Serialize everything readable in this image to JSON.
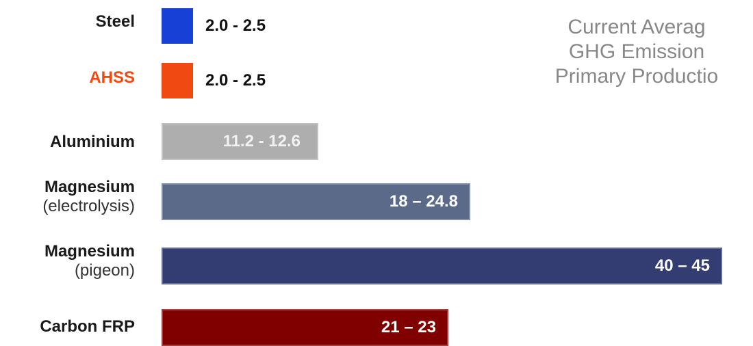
{
  "chart_data": {
    "type": "bar",
    "orientation": "horizontal",
    "categories": [
      {
        "name": "Steel",
        "subname": "",
        "range": [
          2.0,
          2.5
        ],
        "value_label": "2.0 - 2.5",
        "color": "#1640d6",
        "label_color": "#1a1a1a",
        "display": "swatch"
      },
      {
        "name": "AHSS",
        "subname": "",
        "range": [
          2.0,
          2.5
        ],
        "value_label": "2.0 - 2.5",
        "color": "#f04a12",
        "label_color": "#f04a12",
        "display": "swatch"
      },
      {
        "name": "Aluminium",
        "subname": "",
        "range": [
          11.2,
          12.6
        ],
        "value_label": "11.2 - 12.6",
        "color": "#aeaeae",
        "label_color": "#1a1a1a",
        "display": "bar"
      },
      {
        "name": "Magnesium",
        "subname": "(electrolysis)",
        "range": [
          18,
          24.8
        ],
        "value_label": "18 – 24.8",
        "color": "#5c6a8a",
        "label_color": "#1a1a1a",
        "display": "bar"
      },
      {
        "name": "Magnesium",
        "subname": "(pigeon)",
        "range": [
          40,
          45
        ],
        "value_label": "40 – 45",
        "color": "#333d72",
        "label_color": "#1a1a1a",
        "display": "bar"
      },
      {
        "name": "Carbon FRP",
        "subname": "",
        "range": [
          21,
          23
        ],
        "value_label": "21 – 23",
        "color": "#800000",
        "label_color": "#1a1a1a",
        "display": "bar"
      }
    ],
    "annotation": [
      "Current Averag",
      "GHG Emission",
      "Primary Productio"
    ],
    "title": "",
    "xlabel": "",
    "ylabel": "",
    "grid": false,
    "legend": "none"
  }
}
